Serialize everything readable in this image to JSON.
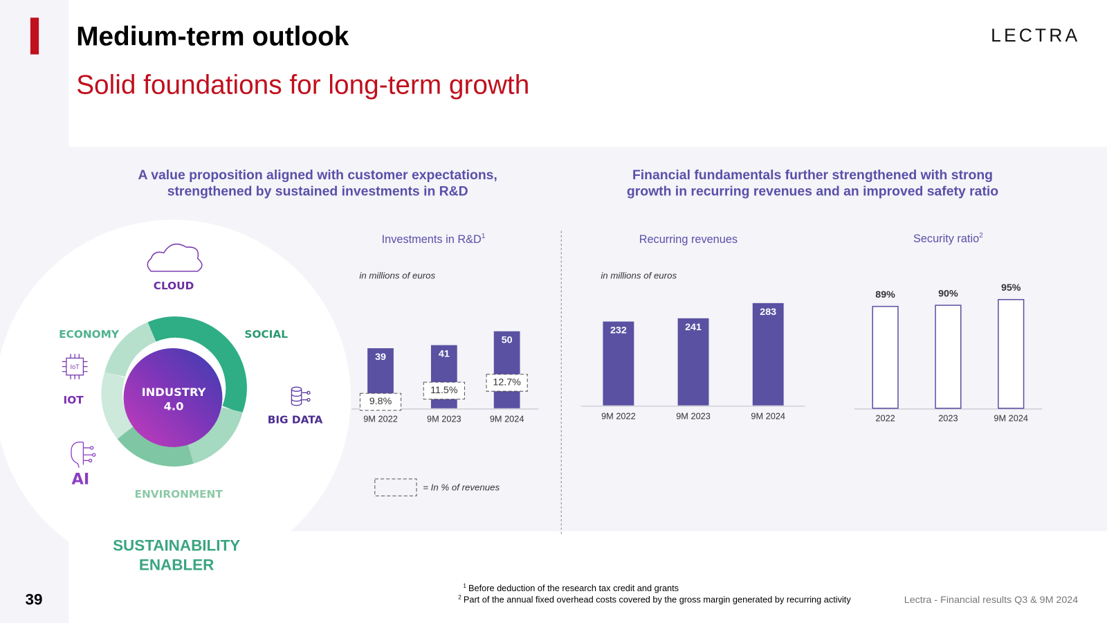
{
  "header": {
    "title": "Medium-term outlook",
    "subtitle": "Solid foundations for long-term growth",
    "logo": "LECTRA"
  },
  "left_heading": [
    "A value proposition aligned with customer expectations,",
    "strengthened by sustained investments in R&D"
  ],
  "right_heading": [
    "Financial fundamentals further strengthened with strong",
    "growth in recurring revenues and an improved safety ratio"
  ],
  "diagram": {
    "center": [
      "INDUSTRY",
      "4.0"
    ],
    "cloud": "CLOUD",
    "economy": "ECONOMY",
    "social": "SOCIAL",
    "iot": "IOT",
    "iot_icon": "IoT",
    "big_data": "BIG DATA",
    "ai": "AI",
    "environment": "ENVIRONMENT",
    "caption": [
      "SUSTAINABILITY",
      "ENABLER"
    ]
  },
  "chart_data": [
    {
      "type": "bar",
      "title": "Investments in R&D",
      "title_note": "1",
      "unit_note": "in millions of euros",
      "categories": [
        "9M 2022",
        "9M 2023",
        "9M 2024"
      ],
      "series": [
        {
          "color": "#5a51a2",
          "values": [
            39,
            41,
            50
          ]
        },
        {
          "name": "= In % of revenues",
          "values": [
            9.8,
            11.5,
            12.7
          ],
          "value_labels": [
            "9.8%",
            "11.5%",
            "12.7%"
          ]
        }
      ]
    },
    {
      "type": "bar",
      "title": "Recurring revenues",
      "unit_note": "in millions of euros",
      "categories": [
        "9M 2022",
        "9M 2023",
        "9M 2024"
      ],
      "values": [
        232,
        241,
        283
      ],
      "color": "#5a51a2"
    },
    {
      "type": "bar",
      "title": "Security ratio",
      "title_note": "2",
      "categories": [
        "2022",
        "2023",
        "9M 2024"
      ],
      "values": [
        89,
        90,
        95
      ],
      "value_labels": [
        "89%",
        "90%",
        "95%"
      ],
      "color": "#5a51a2",
      "outline": true
    }
  ],
  "footnotes": [
    {
      "mark": "1",
      "text": "Before deduction of the research tax credit and grants"
    },
    {
      "mark": "2",
      "text": "Part of the annual fixed overhead costs covered by the gross margin generated by recurring activity"
    }
  ],
  "footer": {
    "source": "Lectra - Financial results Q3 & 9M 2024",
    "page": "39"
  }
}
